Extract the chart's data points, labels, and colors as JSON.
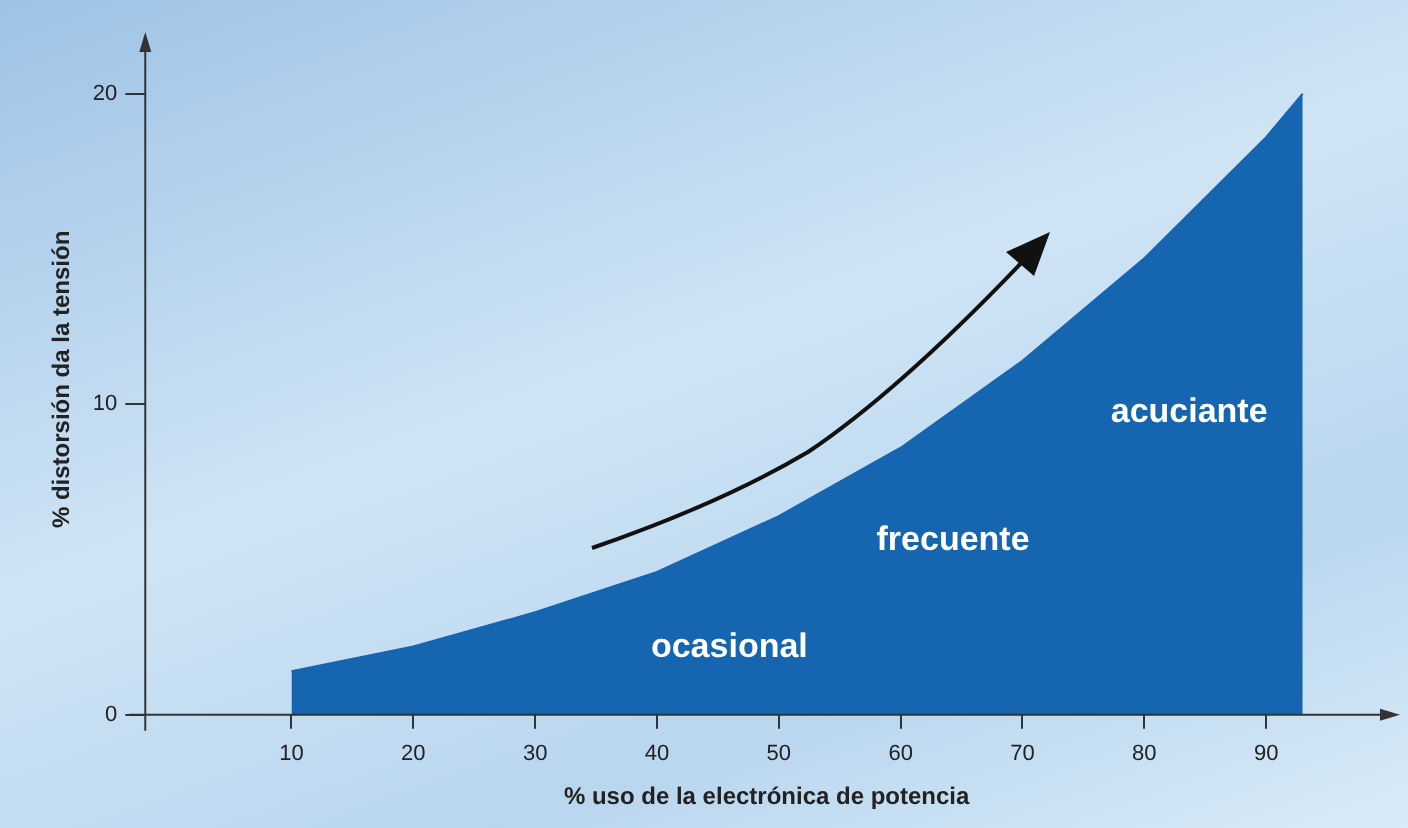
{
  "chart_data": {
    "type": "area",
    "xlabel": "% uso de la electrónica de potencia",
    "ylabel": "% distorsión da la tensión",
    "x": [
      10,
      20,
      30,
      40,
      50,
      60,
      70,
      80,
      90,
      93
    ],
    "series": [
      {
        "color": "#1565b0",
        "values": [
          1.4,
          2.2,
          3.3,
          4.6,
          6.4,
          8.6,
          11.4,
          14.7,
          18.6,
          20
        ]
      }
    ],
    "xlim": [
      -2,
      100
    ],
    "ylim": [
      0,
      21.6
    ],
    "xticks": [
      10,
      20,
      30,
      40,
      50,
      60,
      70,
      80,
      90
    ],
    "yticks": [
      0,
      10,
      20
    ],
    "grid": false,
    "legend": false,
    "annotations": [
      "ocasional",
      "frecuente",
      "acuciante"
    ]
  }
}
